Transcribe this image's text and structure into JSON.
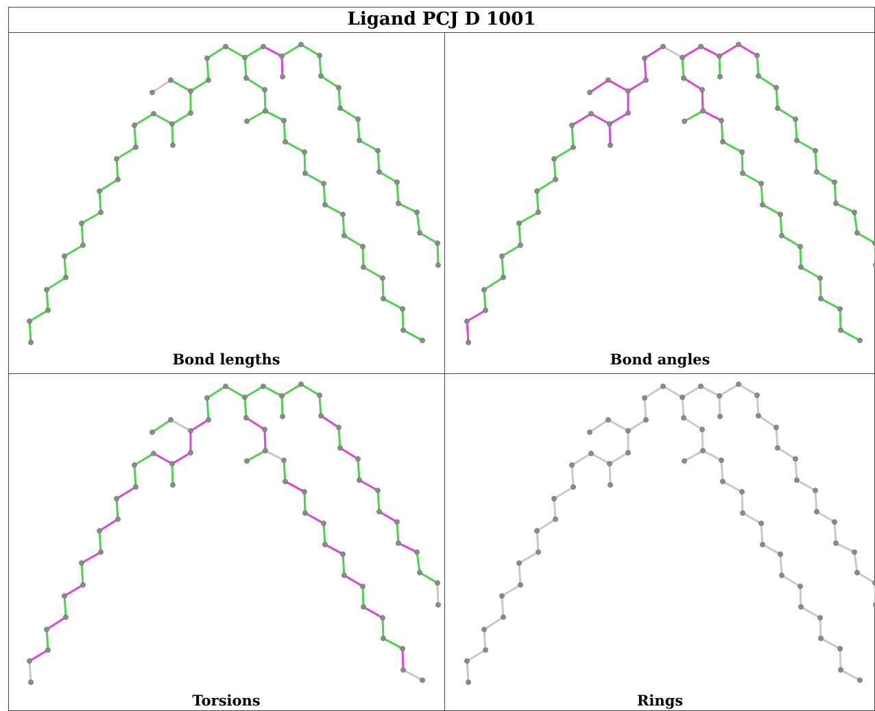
{
  "title": "Ligand PCJ D 1001",
  "colors": {
    "green": "#49d449",
    "magenta": "#e040e0",
    "gray": "#c8c8c8",
    "atom": "#8a8a8a",
    "border": "#444444"
  },
  "panels": [
    {
      "caption": "Bond lengths"
    },
    {
      "caption": "Bond angles"
    },
    {
      "caption": "Torsions"
    },
    {
      "caption": "Rings"
    }
  ]
}
